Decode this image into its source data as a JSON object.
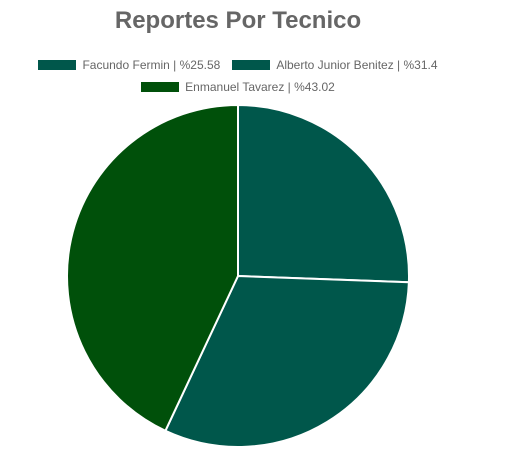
{
  "chart_data": {
    "type": "pie",
    "title": "Reportes Por Tecnico",
    "legend_position": "top",
    "slices": [
      {
        "label": "Facundo Fermin | %25.58",
        "value": 25.58,
        "color": "#00574B"
      },
      {
        "label": "Alberto Junior Benitez | %31.4",
        "value": 31.4,
        "color": "#00574B"
      },
      {
        "label": "Enmanuel Tavarez | %43.02",
        "value": 43.02,
        "color": "#00500A"
      }
    ]
  }
}
